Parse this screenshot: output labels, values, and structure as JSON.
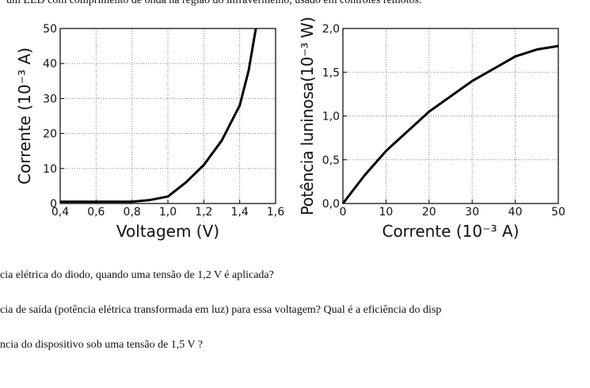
{
  "text": {
    "intro": "um LED com comprimento de onda na região do infravermelho, usado em controles remotos.",
    "questions": [
      "cia elétrica do diodo, quando uma tensão de 1,2 V é aplicada?",
      "cia de saída (potência elétrica transformada em luz) para essa voltagem? Qual é a eficiência do disp",
      "ncia do dispositivo sob uma tensão de 1,5 V ?"
    ]
  },
  "chart_data": [
    {
      "type": "line",
      "xlabel": "Voltagem (V)",
      "ylabel": "Corrente (10⁻³ A)",
      "x": [
        0.4,
        0.6,
        0.8,
        0.9,
        1.0,
        1.1,
        1.2,
        1.3,
        1.4,
        1.45,
        1.49
      ],
      "values": [
        0.5,
        0.5,
        0.5,
        1,
        2,
        6,
        11,
        18,
        28,
        38,
        50
      ],
      "color": "#000000",
      "xlim": [
        0.4,
        1.6
      ],
      "xticks": [
        {
          "value": 0.4,
          "label": "0,4"
        },
        {
          "value": 0.6,
          "label": "0,6"
        },
        {
          "value": 0.8,
          "label": "0,8"
        },
        {
          "value": 1.0,
          "label": "1,0"
        },
        {
          "value": 1.2,
          "label": "1,2"
        },
        {
          "value": 1.4,
          "label": "1,4"
        },
        {
          "value": 1.6,
          "label": "1,6"
        }
      ],
      "ylim": [
        0,
        50
      ],
      "yticks": [
        0,
        10,
        20,
        30,
        40,
        50
      ],
      "grid": true
    },
    {
      "type": "line",
      "xlabel": "Corrente (10⁻³ A)",
      "ylabel": "Potência luninosa(10⁻³ W)",
      "x": [
        0,
        5,
        10,
        20,
        30,
        40,
        45,
        50
      ],
      "values": [
        0,
        0.32,
        0.6,
        1.05,
        1.4,
        1.68,
        1.76,
        1.8
      ],
      "color": "#000000",
      "xlim": [
        0,
        50
      ],
      "xticks": [
        0,
        10,
        20,
        30,
        40,
        50
      ],
      "ylim": [
        0,
        2.0
      ],
      "yticks": [
        {
          "value": 0,
          "label": "0,0"
        },
        {
          "value": 0.5,
          "label": "0,5"
        },
        {
          "value": 1.0,
          "label": "1,0"
        },
        {
          "value": 1.5,
          "label": "1,5"
        },
        {
          "value": 2.0,
          "label": "2,0"
        }
      ],
      "grid": true
    }
  ]
}
